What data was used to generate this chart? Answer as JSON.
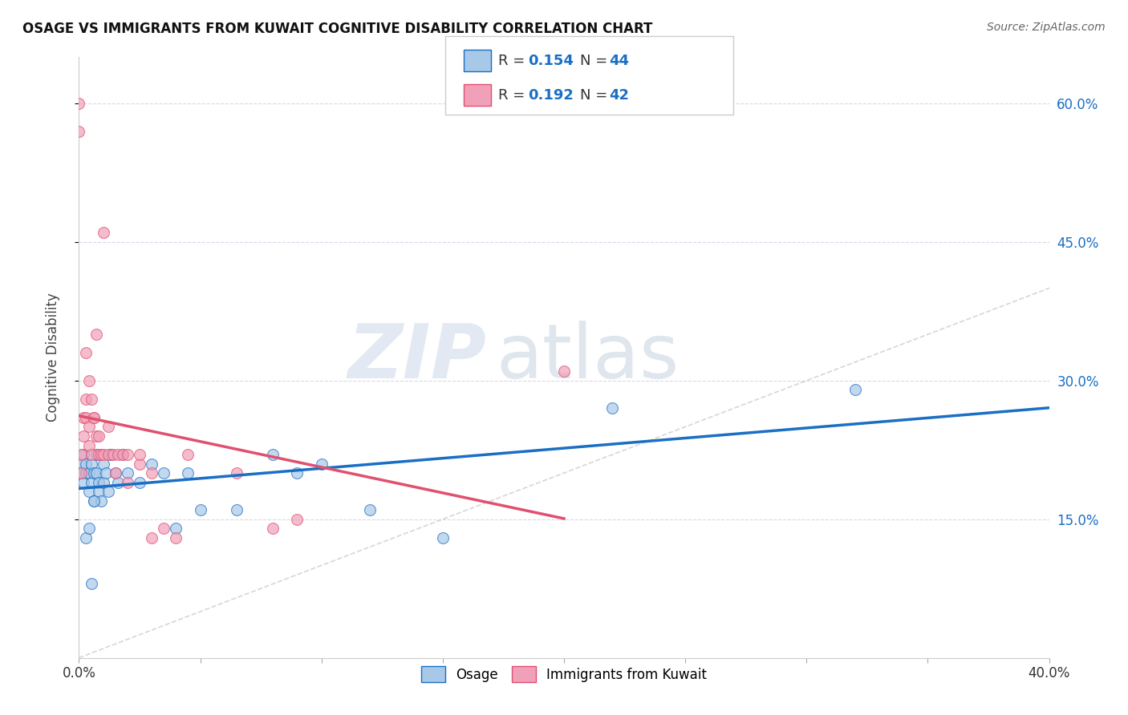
{
  "title": "OSAGE VS IMMIGRANTS FROM KUWAIT COGNITIVE DISABILITY CORRELATION CHART",
  "source": "Source: ZipAtlas.com",
  "ylabel": "Cognitive Disability",
  "xlim": [
    0.0,
    0.4
  ],
  "ylim": [
    0.0,
    0.65
  ],
  "legend_r1": "R = 0.154",
  "legend_n1": "N = 44",
  "legend_r2": "R = 0.192",
  "legend_n2": "N = 42",
  "color_osage": "#a8c8e8",
  "color_kuwait": "#f0a0b8",
  "color_osage_line": "#1a6fc4",
  "color_kuwait_line": "#e05070",
  "color_diagonal": "#cccccc",
  "watermark_zip": "ZIP",
  "watermark_atlas": "atlas",
  "osage_x": [
    0.001,
    0.001,
    0.002,
    0.002,
    0.003,
    0.003,
    0.004,
    0.004,
    0.005,
    0.005,
    0.006,
    0.006,
    0.007,
    0.007,
    0.008,
    0.008,
    0.009,
    0.01,
    0.01,
    0.011,
    0.012,
    0.013,
    0.015,
    0.016,
    0.018,
    0.02,
    0.025,
    0.03,
    0.035,
    0.04,
    0.045,
    0.05,
    0.065,
    0.08,
    0.09,
    0.1,
    0.12,
    0.15,
    0.22,
    0.32,
    0.003,
    0.004,
    0.005,
    0.006
  ],
  "osage_y": [
    0.21,
    0.2,
    0.22,
    0.19,
    0.2,
    0.21,
    0.18,
    0.2,
    0.19,
    0.21,
    0.17,
    0.2,
    0.22,
    0.2,
    0.19,
    0.18,
    0.17,
    0.21,
    0.19,
    0.2,
    0.18,
    0.22,
    0.2,
    0.19,
    0.22,
    0.2,
    0.19,
    0.21,
    0.2,
    0.14,
    0.2,
    0.16,
    0.16,
    0.22,
    0.2,
    0.21,
    0.16,
    0.13,
    0.27,
    0.29,
    0.13,
    0.14,
    0.08,
    0.17
  ],
  "kuwait_x": [
    0.0,
    0.0,
    0.001,
    0.001,
    0.002,
    0.002,
    0.003,
    0.003,
    0.004,
    0.004,
    0.005,
    0.006,
    0.007,
    0.008,
    0.009,
    0.01,
    0.012,
    0.014,
    0.016,
    0.018,
    0.02,
    0.025,
    0.03,
    0.035,
    0.04,
    0.045,
    0.065,
    0.08,
    0.09,
    0.003,
    0.004,
    0.005,
    0.006,
    0.007,
    0.008,
    0.01,
    0.012,
    0.015,
    0.02,
    0.025,
    0.03,
    0.2
  ],
  "kuwait_y": [
    0.6,
    0.57,
    0.22,
    0.2,
    0.26,
    0.24,
    0.28,
    0.26,
    0.25,
    0.23,
    0.22,
    0.26,
    0.24,
    0.22,
    0.22,
    0.22,
    0.22,
    0.22,
    0.22,
    0.22,
    0.22,
    0.21,
    0.2,
    0.14,
    0.13,
    0.22,
    0.2,
    0.14,
    0.15,
    0.33,
    0.3,
    0.28,
    0.26,
    0.35,
    0.24,
    0.46,
    0.25,
    0.2,
    0.19,
    0.22,
    0.13,
    0.31
  ]
}
